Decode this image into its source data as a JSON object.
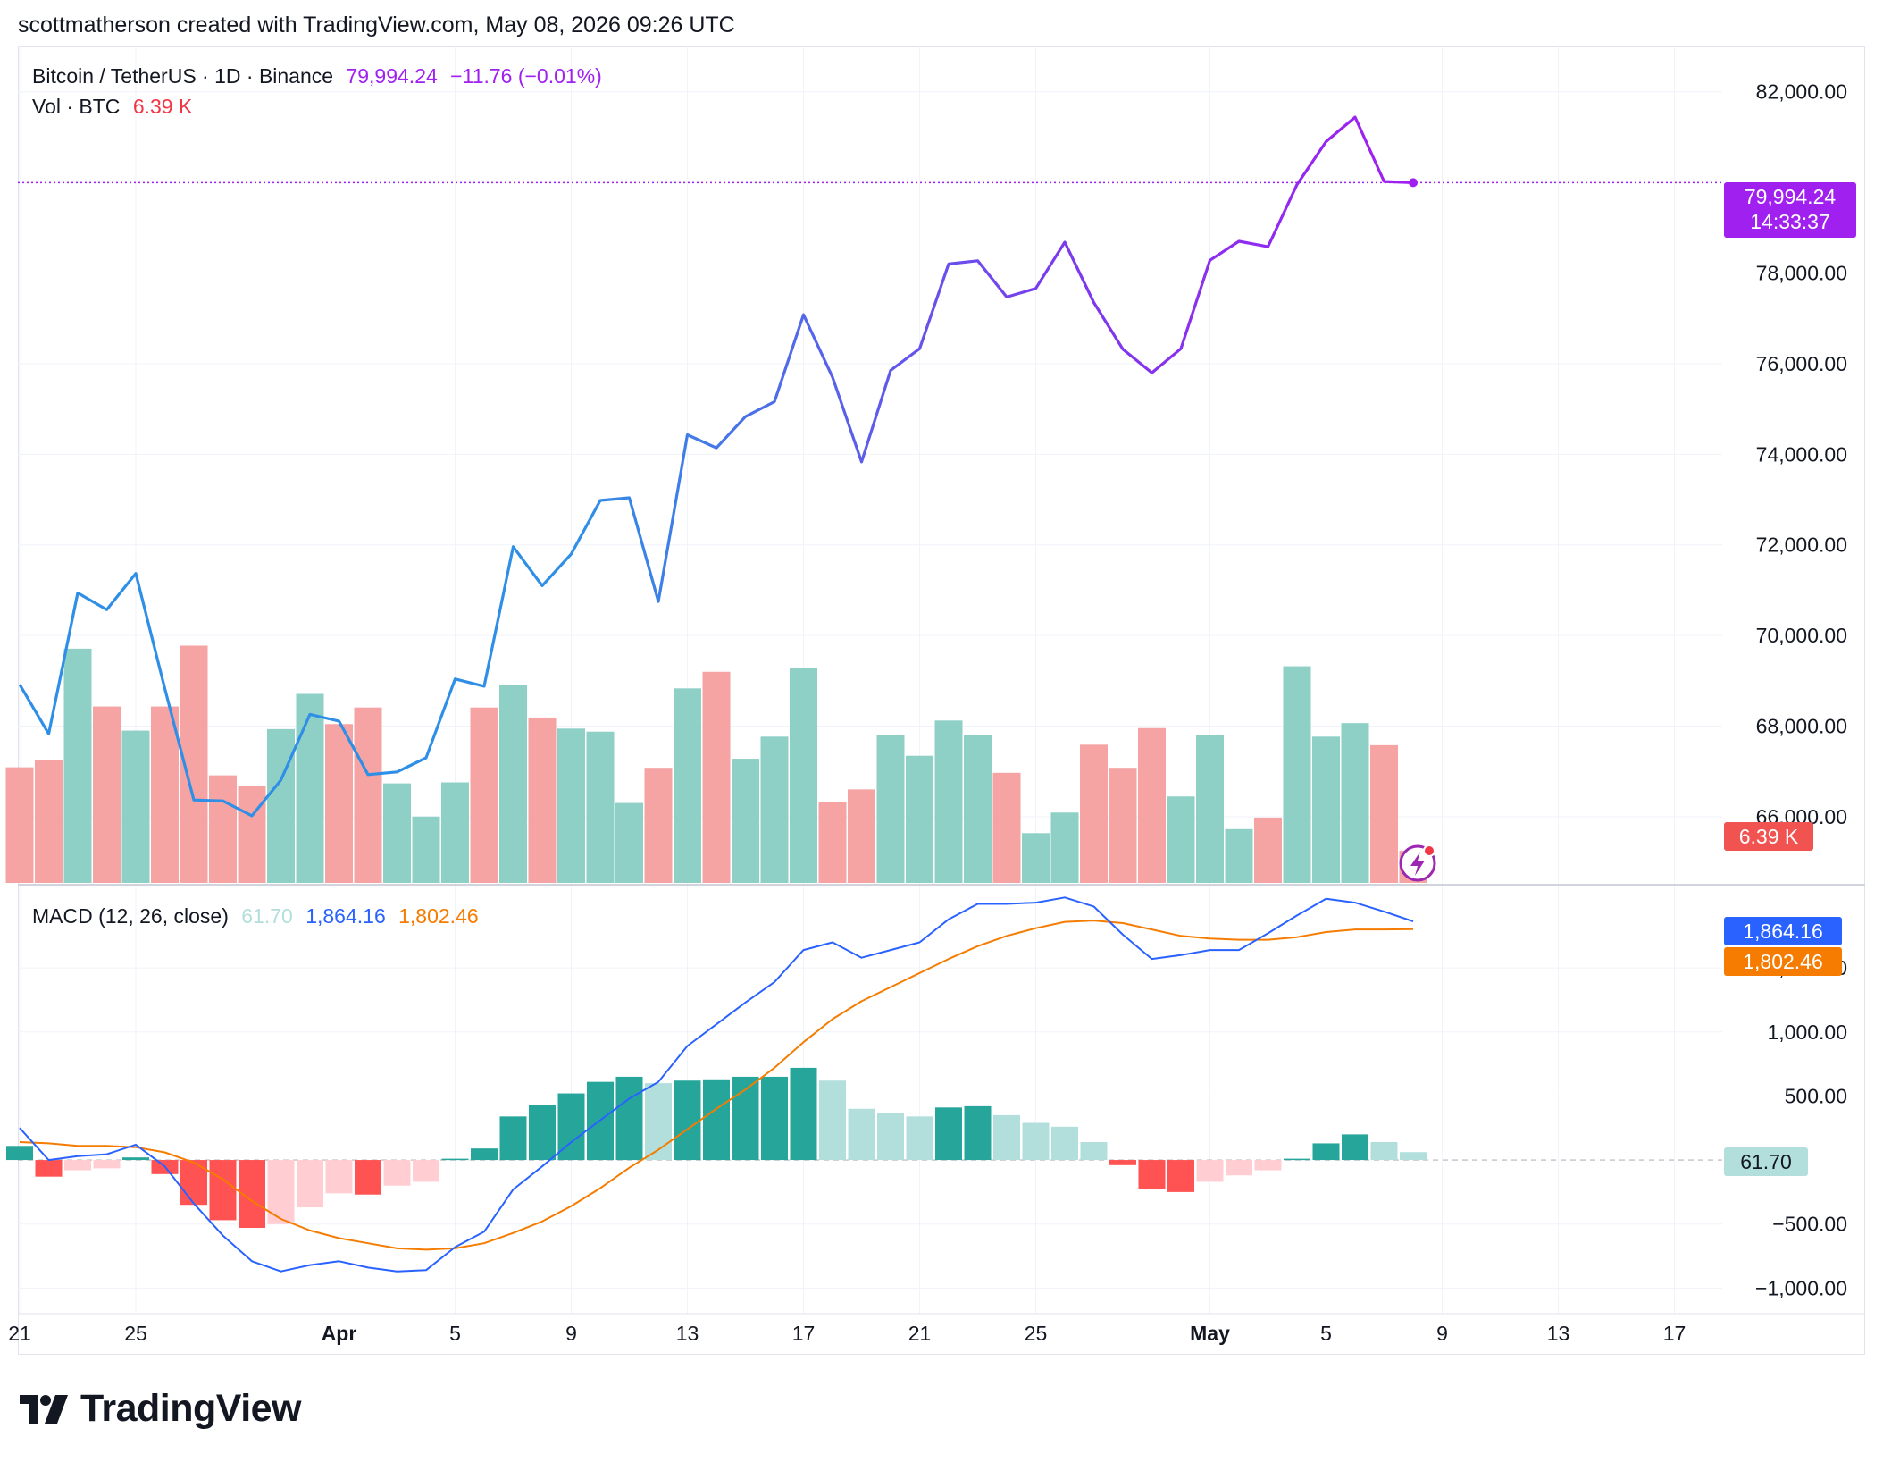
{
  "header": {
    "attribution": "scottmatherson created with TradingView.com, May 08, 2026 09:26 UTC"
  },
  "legend": {
    "symbol": "Bitcoin / TetherUS · 1D · Binance",
    "price": "79,994.24",
    "change": "−11.76 (−0.01%)",
    "vol_label": "Vol · BTC",
    "vol_value": "6.39 K",
    "macd_label": "MACD (12, 26, close)",
    "macd_hist": "61.70",
    "macd_line": "1,864.16",
    "macd_signal": "1,802.46"
  },
  "price_tag": {
    "price": "79,994.24",
    "countdown": "14:33:37"
  },
  "vol_tag": "6.39 K",
  "macd_tags": {
    "macd": "1,864.16",
    "signal": "1,802.46",
    "hist": "61.70"
  },
  "brand": {
    "name": "TradingView"
  },
  "colors": {
    "price_blue": "#2f8fe6",
    "price_purple": "#a020f0",
    "vol_up": "#8fd0c6",
    "vol_down": "#f5a3a3",
    "macd_line": "#2962ff",
    "signal_line": "#f57c00",
    "hist_up_strong": "#26a69a",
    "hist_up_weak": "#b2dfdb",
    "hist_down_strong": "#ff5252",
    "hist_down_weak": "#ffcdd2",
    "grid": "#f0f3fa"
  },
  "chart_data": [
    {
      "type": "line",
      "title": "Bitcoin / TetherUS · 1D · Binance",
      "x_tick_labels": [
        "21",
        "25",
        "Apr",
        "5",
        "9",
        "13",
        "17",
        "21",
        "25",
        "May",
        "5",
        "9",
        "13",
        "17"
      ],
      "y_tick_labels": [
        "82,000.00",
        "78,000.00",
        "76,000.00",
        "74,000.00",
        "72,000.00",
        "70,000.00",
        "68,000.00",
        "66,000.00"
      ],
      "ylim": [
        64500,
        83000
      ],
      "dates": [
        "Mar 21",
        "Mar 22",
        "Mar 23",
        "Mar 24",
        "Mar 25",
        "Mar 26",
        "Mar 27",
        "Mar 28",
        "Mar 29",
        "Mar 30",
        "Mar 31",
        "Apr 1",
        "Apr 2",
        "Apr 3",
        "Apr 4",
        "Apr 5",
        "Apr 6",
        "Apr 7",
        "Apr 8",
        "Apr 9",
        "Apr 10",
        "Apr 11",
        "Apr 12",
        "Apr 13",
        "Apr 14",
        "Apr 15",
        "Apr 16",
        "Apr 17",
        "Apr 18",
        "Apr 19",
        "Apr 20",
        "Apr 21",
        "Apr 22",
        "Apr 23",
        "Apr 24",
        "Apr 25",
        "Apr 26",
        "Apr 27",
        "Apr 28",
        "Apr 29",
        "Apr 30",
        "May 1",
        "May 2",
        "May 3",
        "May 4",
        "May 5",
        "May 6",
        "May 7",
        "May 8"
      ],
      "series": [
        {
          "name": "Close",
          "values": [
            68920,
            67830,
            70940,
            70570,
            71370,
            68830,
            66370,
            66350,
            66020,
            66810,
            68260,
            68110,
            66930,
            66990,
            67300,
            69040,
            68880,
            71960,
            71100,
            71800,
            72980,
            73040,
            70750,
            74430,
            74140,
            74830,
            75160,
            77080,
            75700,
            73830,
            75850,
            76330,
            78200,
            78270,
            77470,
            77660,
            78680,
            77350,
            76320,
            75800,
            76330,
            78280,
            78700,
            78580,
            79950,
            80900,
            81440,
            80020,
            79994.24
          ]
        },
        {
          "name": "Vol · BTC",
          "values": [
            23.0,
            24.4,
            46.6,
            35.1,
            30.3,
            35.1,
            47.2,
            21.4,
            19.3,
            30.6,
            37.6,
            31.6,
            34.9,
            19.8,
            13.2,
            20.0,
            34.9,
            39.4,
            32.9,
            30.7,
            30.1,
            15.9,
            22.9,
            38.7,
            42.0,
            24.7,
            29.1,
            42.8,
            16.0,
            18.6,
            29.4,
            25.3,
            32.3,
            29.5,
            21.9,
            9.9,
            14.0,
            27.5,
            22.9,
            30.8,
            17.2,
            29.5,
            10.7,
            13.0,
            43.1,
            29.1,
            31.8,
            27.4,
            6.39
          ],
          "direction": [
            "down",
            "down",
            "up",
            "down",
            "up",
            "down",
            "down",
            "down",
            "down",
            "up",
            "up",
            "down",
            "down",
            "up",
            "up",
            "up",
            "down",
            "up",
            "down",
            "up",
            "up",
            "up",
            "down",
            "up",
            "down",
            "up",
            "up",
            "up",
            "down",
            "down",
            "up",
            "up",
            "up",
            "up",
            "down",
            "up",
            "up",
            "down",
            "down",
            "down",
            "up",
            "up",
            "up",
            "down",
            "up",
            "up",
            "up",
            "down",
            "down"
          ]
        }
      ]
    },
    {
      "type": "line",
      "title": "MACD (12, 26, close)",
      "y_tick_labels": [
        "1,500.00",
        "1,000.00",
        "500.00",
        "−500.00",
        "−1,000.00"
      ],
      "ylim": [
        -1200,
        2150
      ],
      "series": [
        {
          "name": "MACD",
          "values": [
            250,
            0,
            30,
            45,
            120,
            -50,
            -340,
            -590,
            -790,
            -870,
            -820,
            -790,
            -840,
            -870,
            -860,
            -680,
            -560,
            -230,
            -50,
            140,
            310,
            480,
            610,
            890,
            1060,
            1230,
            1390,
            1640,
            1700,
            1580,
            1640,
            1700,
            1880,
            2000,
            2000,
            2010,
            2050,
            1980,
            1760,
            1570,
            1600,
            1640,
            1640,
            1770,
            1910,
            2040,
            2010,
            1940,
            1864.16
          ]
        },
        {
          "name": "Signal",
          "values": [
            140,
            130,
            110,
            110,
            100,
            60,
            -20,
            -150,
            -320,
            -460,
            -550,
            -610,
            -650,
            -690,
            -700,
            -690,
            -650,
            -570,
            -480,
            -360,
            -220,
            -60,
            80,
            240,
            400,
            550,
            720,
            920,
            1100,
            1240,
            1350,
            1460,
            1570,
            1670,
            1750,
            1810,
            1860,
            1870,
            1850,
            1800,
            1750,
            1730,
            1720,
            1720,
            1740,
            1780,
            1800,
            1800,
            1802.46
          ]
        },
        {
          "name": "Histogram",
          "values": [
            110,
            -130,
            -80,
            -65,
            20,
            -110,
            -350,
            -470,
            -530,
            -500,
            -370,
            -260,
            -270,
            -200,
            -170,
            10,
            90,
            340,
            430,
            520,
            610,
            650,
            600,
            620,
            630,
            650,
            650,
            720,
            620,
            400,
            370,
            340,
            410,
            420,
            350,
            290,
            260,
            140,
            -40,
            -230,
            -250,
            -170,
            -120,
            -80,
            10,
            130,
            200,
            140,
            61.7
          ]
        }
      ]
    }
  ]
}
